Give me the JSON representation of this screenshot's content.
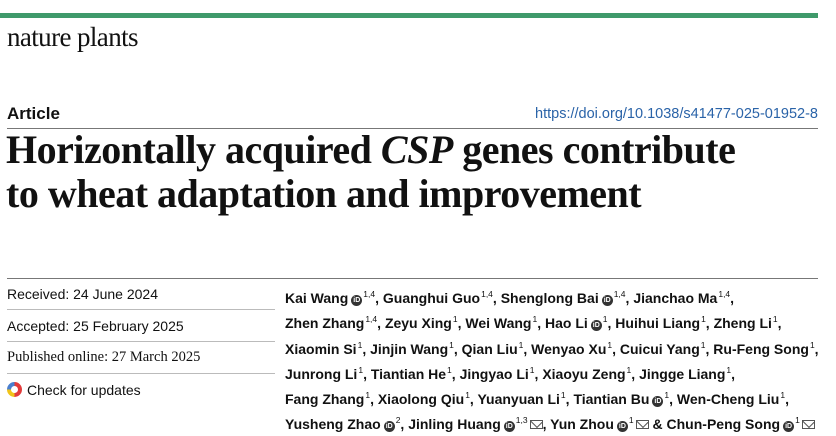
{
  "journal": {
    "name": "nature plants",
    "accent_color": "#3f9a6b"
  },
  "article": {
    "type": "Article",
    "doi": "https://doi.org/10.1038/s41477-025-01952-8",
    "title_part1": "Horizontally acquired ",
    "title_italic": "CSP",
    "title_part2": " genes contribute",
    "title_line2": "to wheat adaptation and improvement"
  },
  "dates": {
    "received": "Received: 24 June 2024",
    "accepted": "Accepted: 25 February 2025",
    "published": "Published online: 27 March 2025",
    "check_updates": "Check for updates"
  },
  "authors": [
    {
      "name": "Kai Wang",
      "orcid": true,
      "aff": "1,4"
    },
    {
      "name": "Guanghui Guo",
      "orcid": false,
      "aff": "1,4"
    },
    {
      "name": "Shenglong Bai",
      "orcid": true,
      "aff": "1,4"
    },
    {
      "name": "Jianchao Ma",
      "orcid": false,
      "aff": "1,4"
    },
    {
      "name": "Zhen Zhang",
      "orcid": false,
      "aff": "1,4"
    },
    {
      "name": "Zeyu Xing",
      "orcid": false,
      "aff": "1"
    },
    {
      "name": "Wei Wang",
      "orcid": false,
      "aff": "1"
    },
    {
      "name": "Hao Li",
      "orcid": true,
      "aff": "1"
    },
    {
      "name": "Huihui Liang",
      "orcid": false,
      "aff": "1"
    },
    {
      "name": "Zheng Li",
      "orcid": false,
      "aff": "1"
    },
    {
      "name": "Xiaomin Si",
      "orcid": false,
      "aff": "1"
    },
    {
      "name": "Jinjin Wang",
      "orcid": false,
      "aff": "1"
    },
    {
      "name": "Qian Liu",
      "orcid": false,
      "aff": "1"
    },
    {
      "name": "Wenyao Xu",
      "orcid": false,
      "aff": "1"
    },
    {
      "name": "Cuicui Yang",
      "orcid": false,
      "aff": "1"
    },
    {
      "name": "Ru-Feng Song",
      "orcid": false,
      "aff": "1"
    },
    {
      "name": "Junrong Li",
      "orcid": false,
      "aff": "1"
    },
    {
      "name": "Tiantian He",
      "orcid": false,
      "aff": "1"
    },
    {
      "name": "Jingyao Li",
      "orcid": false,
      "aff": "1"
    },
    {
      "name": "Xiaoyu Zeng",
      "orcid": false,
      "aff": "1"
    },
    {
      "name": "Jingge Liang",
      "orcid": false,
      "aff": "1"
    },
    {
      "name": "Fang Zhang",
      "orcid": false,
      "aff": "1"
    },
    {
      "name": "Xiaolong Qiu",
      "orcid": false,
      "aff": "1"
    },
    {
      "name": "Yuanyuan Li",
      "orcid": false,
      "aff": "1"
    },
    {
      "name": "Tiantian Bu",
      "orcid": true,
      "aff": "1"
    },
    {
      "name": "Wen-Cheng Liu",
      "orcid": false,
      "aff": "1"
    },
    {
      "name": "Yusheng Zhao",
      "orcid": true,
      "aff": "2"
    },
    {
      "name": "Jinling Huang",
      "orcid": true,
      "aff": "1,3",
      "email": true
    },
    {
      "name": "Yun Zhou",
      "orcid": true,
      "aff": "1",
      "email": true
    },
    {
      "name": "Chun-Peng Song",
      "orcid": true,
      "aff": "1",
      "email": true,
      "prefix": "& "
    }
  ]
}
